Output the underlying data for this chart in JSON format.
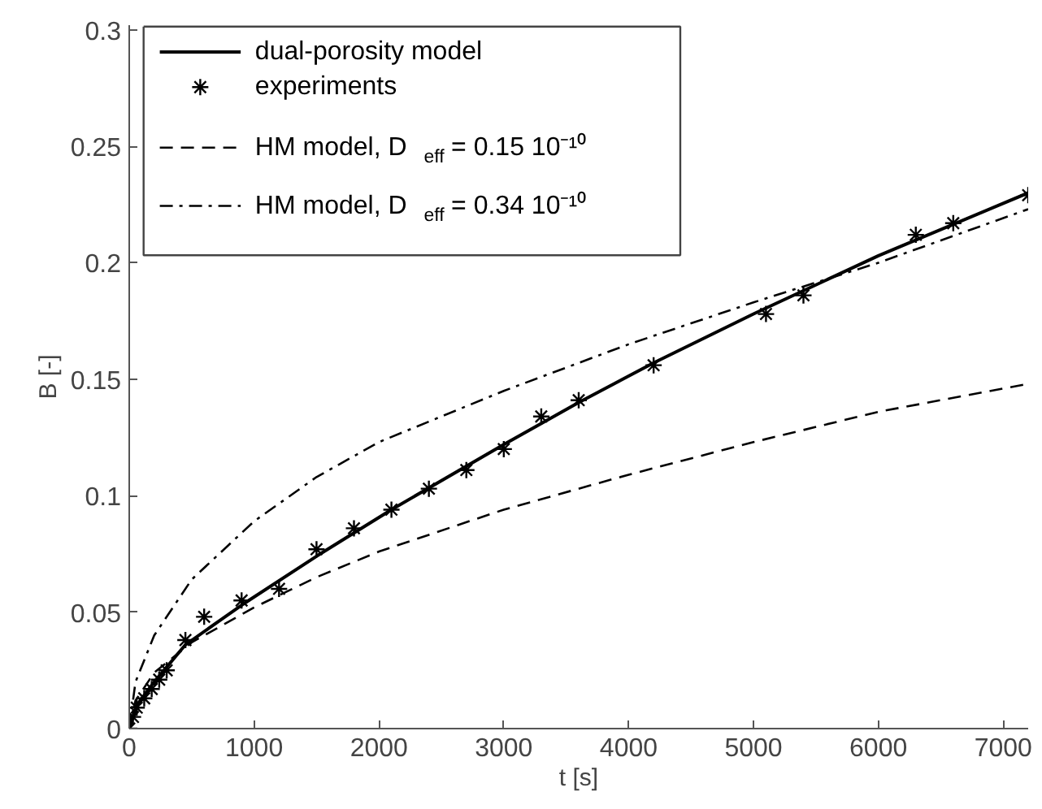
{
  "chart_data": {
    "type": "line",
    "xlabel": "t [s]",
    "ylabel": "B [-]",
    "xlim": [
      0,
      7200
    ],
    "ylim": [
      0,
      0.302
    ],
    "xticks": [
      0,
      1000,
      2000,
      3000,
      4000,
      5000,
      6000,
      7000
    ],
    "yticks": [
      0,
      0.05,
      0.1,
      0.15,
      0.2,
      0.25,
      0.3
    ],
    "grid": false,
    "legend": "top left",
    "series": [
      {
        "name": "dual-porosity model",
        "line_style": "solid",
        "color": "#000000",
        "x": [
          0,
          60,
          200,
          450,
          900,
          1500,
          2100,
          3000,
          3600,
          4200,
          5000,
          6000,
          7200
        ],
        "values": [
          0,
          0.01,
          0.02,
          0.036,
          0.053,
          0.074,
          0.094,
          0.122,
          0.14,
          0.157,
          0.178,
          0.203,
          0.23
        ]
      },
      {
        "name": "experiments",
        "type": "scatter",
        "marker": "cross",
        "color": "#000000",
        "x": [
          0,
          30,
          60,
          120,
          180,
          240,
          300,
          450,
          600,
          900,
          1200,
          1500,
          1800,
          2100,
          2400,
          2700,
          3000,
          3300,
          3600,
          4200,
          5100,
          5400,
          6300,
          6600,
          7200
        ],
        "values": [
          0,
          0.005,
          0.009,
          0.013,
          0.017,
          0.021,
          0.025,
          0.038,
          0.048,
          0.055,
          0.06,
          0.077,
          0.086,
          0.094,
          0.103,
          0.111,
          0.12,
          0.134,
          0.141,
          0.156,
          0.178,
          0.186,
          0.212,
          0.217,
          0.229
        ]
      },
      {
        "name": "HM model, D$_{eff}$ = 0.15 10⁻¹⁰",
        "line_style": "dashed",
        "color": "#000000",
        "x": [
          0,
          50,
          200,
          500,
          1000,
          1500,
          2000,
          3000,
          4000,
          5000,
          6000,
          7200
        ],
        "values": [
          0,
          0.012,
          0.024,
          0.037,
          0.052,
          0.065,
          0.076,
          0.094,
          0.109,
          0.123,
          0.136,
          0.148
        ]
      },
      {
        "name": "HM model, D$_{eff}$ = 0.34 10⁻¹⁰",
        "line_style": "dashdot",
        "color": "#000000",
        "x": [
          0,
          50,
          200,
          500,
          1000,
          1500,
          2000,
          3000,
          4000,
          5000,
          6000,
          7200
        ],
        "values": [
          0,
          0.02,
          0.04,
          0.064,
          0.089,
          0.108,
          0.123,
          0.145,
          0.165,
          0.183,
          0.2,
          0.223
        ]
      }
    ]
  }
}
